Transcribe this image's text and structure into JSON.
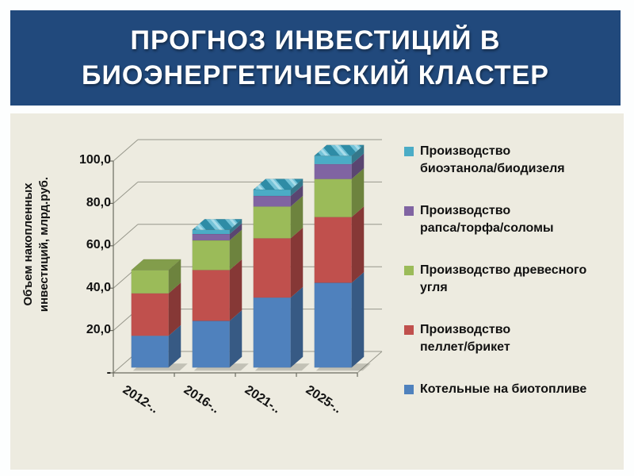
{
  "slide": {
    "title": "ПРОГНОЗ ИНВЕСТИЦИЙ В\nБИОЭНЕРГЕТИЧЕСКИЙ КЛАСТЕР",
    "banner_color": "#21497C",
    "panel_color": "#EDEBE0"
  },
  "chart_data": {
    "type": "bar",
    "subtype": "3d-stacked-column",
    "title": "",
    "xlabel": "",
    "ylabel": "Объем накопленных\nинвестиций, млрд.руб.",
    "ylim": [
      0,
      100
    ],
    "ytick_values": [
      0,
      20,
      40,
      60,
      80,
      100
    ],
    "ytick_labels": [
      "-",
      "20,0",
      "40,0",
      "60,0",
      "80,0",
      "100,0"
    ],
    "grid": true,
    "legend_position": "right",
    "categories": [
      "2012-..",
      "2016-..",
      "2021-..",
      "2025-.."
    ],
    "series": [
      {
        "name": "Котельные на биотопливе",
        "color": "#4F81BD",
        "values": [
          15,
          22,
          33,
          40
        ]
      },
      {
        "name": "Производство пеллет/брикет",
        "color": "#C0504D",
        "values": [
          20,
          24,
          28,
          31
        ]
      },
      {
        "name": "Производство древесного угля",
        "color": "#9BBB59",
        "values": [
          11,
          14,
          15,
          18
        ]
      },
      {
        "name": "Производство рапса/торфа/соломы",
        "color": "#8064A2",
        "values": [
          0,
          3,
          5,
          7
        ]
      },
      {
        "name": "Производство биоэтанола/биодизеля",
        "color": "#4BACC6",
        "values": [
          0,
          2,
          3,
          4
        ]
      }
    ],
    "bar_totals": [
      46,
      65,
      84,
      100
    ],
    "legend": [
      {
        "label": "Производство\nбиоэтанола/биодизеля",
        "color": "#4BACC6"
      },
      {
        "label": "Производство\nрапса/торфа/соломы",
        "color": "#8064A2"
      },
      {
        "label": "Производство древесного\nугля",
        "color": "#9BBB59"
      },
      {
        "label": "Производство\nпеллет/брикет",
        "color": "#C0504D"
      },
      {
        "label": "Котельные на биотопливе",
        "color": "#4F81BD"
      }
    ]
  }
}
